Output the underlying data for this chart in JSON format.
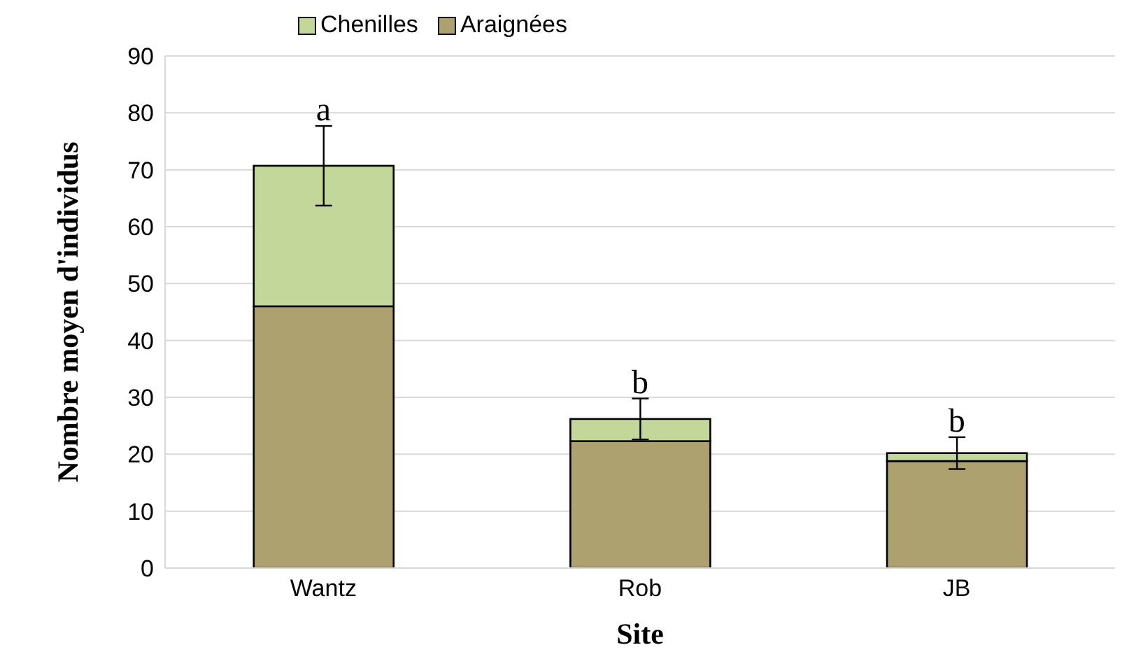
{
  "chart_data": {
    "type": "bar",
    "stacked": true,
    "xlabel": "Site",
    "ylabel": "Nombre moyen d'individus",
    "categories": [
      "Wantz",
      "Rob",
      "JB"
    ],
    "series": [
      {
        "name": "Araignées",
        "color": "#ada26f",
        "values": [
          46,
          22.3,
          18.8
        ]
      },
      {
        "name": "Chenilles",
        "color": "#c4d79b",
        "values": [
          24.7,
          3.9,
          1.4
        ],
        "errors": [
          7,
          3.6,
          2.8
        ]
      }
    ],
    "ylim": [
      0,
      90
    ],
    "yticks": [
      0,
      10,
      20,
      30,
      40,
      50,
      60,
      70,
      80,
      90
    ],
    "grid": "y",
    "legend": "top left",
    "annotations": [
      {
        "text": "a",
        "x": "Wantz",
        "y": 77.7
      },
      {
        "text": "b",
        "x": "Rob",
        "y": 29.8
      },
      {
        "text": "b",
        "x": "JB",
        "y": 23
      }
    ]
  }
}
